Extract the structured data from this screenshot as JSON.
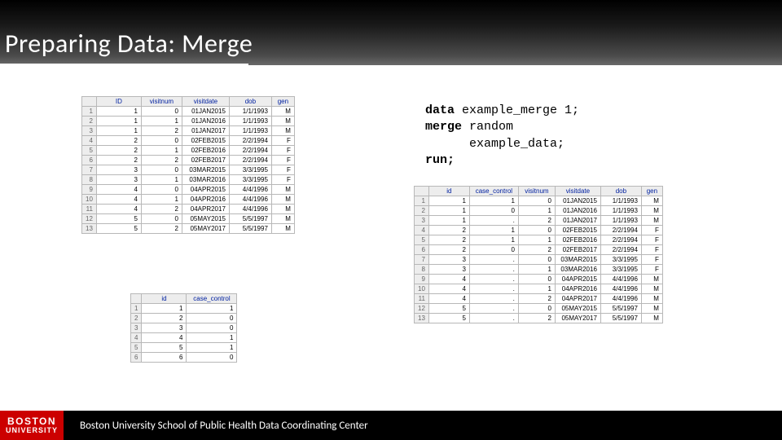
{
  "slide": {
    "title": "Preparing Data: Merge"
  },
  "code": {
    "line1_kw": "data",
    "line1_rest": " example_merge 1;",
    "line2_kw": "merge",
    "line2_rest": " random",
    "line3": "      example_data;",
    "line4_kw": "run;"
  },
  "table1": {
    "columns": [
      "",
      "ID",
      "visitnum",
      "visitdate",
      "dob",
      "gen"
    ],
    "widths": [
      12,
      55,
      50,
      58,
      52,
      28
    ],
    "rows": [
      [
        "1",
        "1",
        "0",
        "01JAN2015",
        "1/1/1993",
        "M"
      ],
      [
        "2",
        "1",
        "1",
        "01JAN2016",
        "1/1/1993",
        "M"
      ],
      [
        "3",
        "1",
        "2",
        "01JAN2017",
        "1/1/1993",
        "M"
      ],
      [
        "4",
        "2",
        "0",
        "02FEB2015",
        "2/2/1994",
        "F"
      ],
      [
        "5",
        "2",
        "1",
        "02FEB2016",
        "2/2/1994",
        "F"
      ],
      [
        "6",
        "2",
        "2",
        "02FEB2017",
        "2/2/1994",
        "F"
      ],
      [
        "7",
        "3",
        "0",
        "03MAR2015",
        "3/3/1995",
        "F"
      ],
      [
        "8",
        "3",
        "1",
        "03MAR2016",
        "3/3/1995",
        "F"
      ],
      [
        "9",
        "4",
        "0",
        "04APR2015",
        "4/4/1996",
        "M"
      ],
      [
        "10",
        "4",
        "1",
        "04APR2016",
        "4/4/1996",
        "M"
      ],
      [
        "11",
        "4",
        "2",
        "04APR2017",
        "4/4/1996",
        "M"
      ],
      [
        "12",
        "5",
        "0",
        "05MAY2015",
        "5/5/1997",
        "M"
      ],
      [
        "13",
        "5",
        "2",
        "05MAY2017",
        "5/5/1997",
        "M"
      ]
    ]
  },
  "table2": {
    "columns": [
      "",
      "id",
      "case_control"
    ],
    "widths": [
      12,
      55,
      62
    ],
    "rows": [
      [
        "1",
        "1",
        "1"
      ],
      [
        "2",
        "2",
        "0"
      ],
      [
        "3",
        "3",
        "0"
      ],
      [
        "4",
        "4",
        "1"
      ],
      [
        "5",
        "5",
        "1"
      ],
      [
        "6",
        "6",
        "0"
      ]
    ]
  },
  "table3": {
    "columns": [
      "",
      "id",
      "case_control",
      "visitnum",
      "visitdate",
      "dob",
      "gen"
    ],
    "widths": [
      12,
      50,
      60,
      45,
      56,
      50,
      26
    ],
    "rows": [
      [
        "1",
        "1",
        "1",
        "0",
        "01JAN2015",
        "1/1/1993",
        "M"
      ],
      [
        "2",
        "1",
        "0",
        "1",
        "01JAN2016",
        "1/1/1993",
        "M"
      ],
      [
        "3",
        "1",
        ".",
        "2",
        "01JAN2017",
        "1/1/1993",
        "M"
      ],
      [
        "4",
        "2",
        "1",
        "0",
        "02FEB2015",
        "2/2/1994",
        "F"
      ],
      [
        "5",
        "2",
        "1",
        "1",
        "02FEB2016",
        "2/2/1994",
        "F"
      ],
      [
        "6",
        "2",
        "0",
        "2",
        "02FEB2017",
        "2/2/1994",
        "F"
      ],
      [
        "7",
        "3",
        ".",
        "0",
        "03MAR2015",
        "3/3/1995",
        "F"
      ],
      [
        "8",
        "3",
        ".",
        "1",
        "03MAR2016",
        "3/3/1995",
        "F"
      ],
      [
        "9",
        "4",
        ".",
        "0",
        "04APR2015",
        "4/4/1996",
        "M"
      ],
      [
        "10",
        "4",
        ".",
        "1",
        "04APR2016",
        "4/4/1996",
        "M"
      ],
      [
        "11",
        "4",
        ".",
        "2",
        "04APR2017",
        "4/4/1996",
        "M"
      ],
      [
        "12",
        "5",
        ".",
        "0",
        "05MAY2015",
        "5/5/1997",
        "M"
      ],
      [
        "13",
        "5",
        ".",
        "2",
        "05MAY2017",
        "5/5/1997",
        "M"
      ]
    ]
  },
  "footer": {
    "logo_top": "BOSTON",
    "logo_bottom": "UNIVERSITY",
    "text": "Boston University School of Public Health Data Coordinating Center"
  },
  "colors": {
    "header_top": "#000000",
    "header_bottom": "#6a6a6a",
    "accent": "#cc0000",
    "table_header_bg": "#ededed",
    "table_border": "#b8b8b8"
  }
}
